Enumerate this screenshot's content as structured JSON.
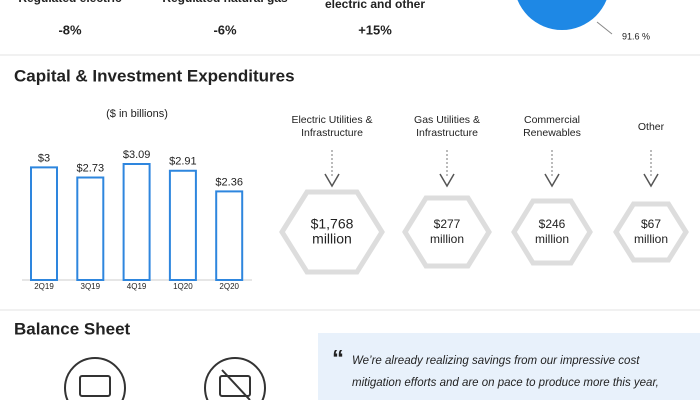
{
  "top_metrics": [
    {
      "label": "Regulated electric",
      "change": "-8%",
      "color": "#d9312b"
    },
    {
      "label": "Regulated natural gas",
      "change": "-6%",
      "color": "#d9312b"
    },
    {
      "label": "electric and other",
      "change": "+15%",
      "color": "#2f9e44"
    }
  ],
  "pie_label": "91.6 %",
  "capex_title": "Capital & Investment Expenditures",
  "chart_data": {
    "type": "bar",
    "subtitle": "($ in billions)",
    "categories": [
      "2Q19",
      "3Q19",
      "4Q19",
      "1Q20",
      "2Q20"
    ],
    "values": [
      3,
      2.73,
      3.09,
      2.91,
      2.36
    ],
    "value_labels": [
      "$3",
      "$2.73",
      "$3.09",
      "$2.91",
      "$2.36"
    ],
    "color": "#2e86de"
  },
  "segments": [
    {
      "label_lines": [
        "Electric Utilities &",
        "Infrastructure"
      ],
      "amount": "$1,768",
      "unit": "million"
    },
    {
      "label_lines": [
        "Gas Utilities &",
        "Infrastructure"
      ],
      "amount": "$277",
      "unit": "million"
    },
    {
      "label_lines": [
        "Commercial",
        "Renewables"
      ],
      "amount": "$246",
      "unit": "million"
    },
    {
      "label_lines": [
        "Other"
      ],
      "amount": "$67",
      "unit": "million"
    }
  ],
  "balance_title": "Balance Sheet",
  "quote": {
    "mark": "“",
    "lines": [
      "We’re already realizing savings from our impressive cost",
      "mitigation efforts and are on pace to produce more this year,"
    ]
  }
}
